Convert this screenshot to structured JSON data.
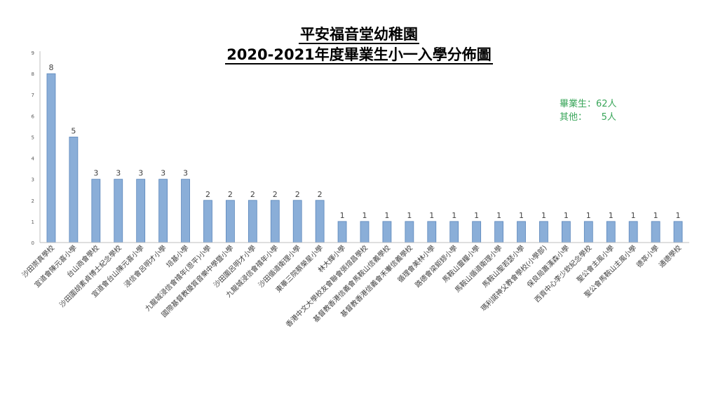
{
  "chart_data": {
    "type": "bar",
    "title": "平安福音堂幼稚園",
    "subtitle": "2020-2021年度畢業生小一入學分佈圖",
    "xlabel": "",
    "ylabel": "",
    "ylim": [
      0,
      9
    ],
    "yticks": [
      0,
      1,
      2,
      3,
      4,
      5,
      6,
      7,
      8,
      9
    ],
    "grid": false,
    "legend": "none",
    "bar_color": "#8aaed8",
    "bar_edge_color": "#5b86bb",
    "categories": [
      "沙田崇真學校",
      "宣道會陳元喜小學",
      "台山商會學校",
      "沙田圍胡素貞博士紀念學校",
      "宣道會台山陳元喜小學",
      "浸信會呂明才小學",
      "培基小學",
      "九龍城浸信會禧年(恩平)小學",
      "國際基督教優質音樂中學暨小學",
      "沙田圍呂明才小學",
      "九龍城浸信會禧年小學",
      "沙田循道衛理小學",
      "東華三院蔡榮星小學",
      "林大輝小學",
      "香港中文大學校友會聯會張煊昌學校",
      "基督教香港信義會馬鞍山信義學校",
      "基督教香港信義會禾輋信義學校",
      "循理會美林小學",
      "路德會梁鉅鏐小學",
      "馬鞍山靈糧小學",
      "馬鞍山循道衛理小學",
      "馬鞍山聖若瑟小學",
      "瑪利諾神父教會學校(小學部)",
      "保良局蕭漢森小學",
      "西貢中心李少欽紀念學校",
      "聖公會主風小學",
      "聖公會馬鞍山主風小學",
      "德萃小學",
      "通德學校"
    ],
    "values": [
      8,
      5,
      3,
      3,
      3,
      3,
      3,
      2,
      2,
      2,
      2,
      2,
      2,
      1,
      1,
      1,
      1,
      1,
      1,
      1,
      1,
      1,
      1,
      1,
      1,
      1,
      1,
      1,
      1
    ]
  },
  "notes": {
    "graduates": "畢業生：62人",
    "others": "其他：     5人"
  },
  "colors": {
    "note_text": "#3aa65a",
    "axis": "#bfbfbf"
  }
}
